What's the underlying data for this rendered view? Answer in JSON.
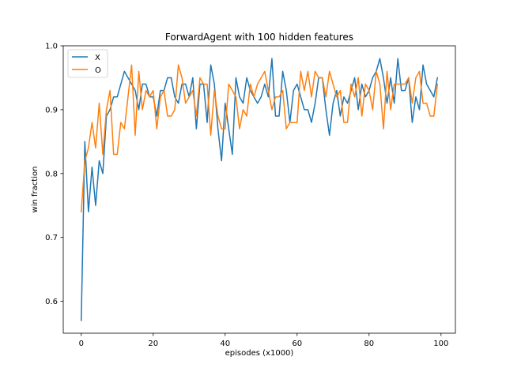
{
  "chart_data": {
    "type": "line",
    "title": "ForwardAgent with 100 hidden features",
    "xlabel": "episodes (x1000)",
    "ylabel": "win fraction",
    "xlim": [
      -5,
      104
    ],
    "ylim": [
      0.55,
      1.0
    ],
    "xticks": [
      0,
      20,
      40,
      60,
      80,
      100
    ],
    "yticks": [
      0.6,
      0.7,
      0.8,
      0.9,
      1.0
    ],
    "ytick_labels": [
      "0.6",
      "0.7",
      "0.8",
      "0.9",
      "1.0"
    ],
    "legend_position": "upper-left",
    "grid": false,
    "x": [
      0,
      1,
      2,
      3,
      4,
      5,
      6,
      7,
      8,
      9,
      10,
      11,
      12,
      13,
      14,
      15,
      16,
      17,
      18,
      19,
      20,
      21,
      22,
      23,
      24,
      25,
      26,
      27,
      28,
      29,
      30,
      31,
      32,
      33,
      34,
      35,
      36,
      37,
      38,
      39,
      40,
      41,
      42,
      43,
      44,
      45,
      46,
      47,
      48,
      49,
      50,
      51,
      52,
      53,
      54,
      55,
      56,
      57,
      58,
      59,
      60,
      61,
      62,
      63,
      64,
      65,
      66,
      67,
      68,
      69,
      70,
      71,
      72,
      73,
      74,
      75,
      76,
      77,
      78,
      79,
      80,
      81,
      82,
      83,
      84,
      85,
      86,
      87,
      88,
      89,
      90,
      91,
      92,
      93,
      94,
      95,
      96,
      97,
      98,
      99
    ],
    "series": [
      {
        "name": "X",
        "color": "#1f77b4",
        "values": [
          0.57,
          0.85,
          0.74,
          0.81,
          0.75,
          0.82,
          0.8,
          0.89,
          0.9,
          0.92,
          0.92,
          0.94,
          0.96,
          0.95,
          0.94,
          0.93,
          0.9,
          0.94,
          0.94,
          0.92,
          0.92,
          0.89,
          0.93,
          0.93,
          0.95,
          0.95,
          0.92,
          0.91,
          0.94,
          0.94,
          0.92,
          0.95,
          0.87,
          0.94,
          0.94,
          0.88,
          0.97,
          0.94,
          0.87,
          0.82,
          0.91,
          0.87,
          0.83,
          0.95,
          0.92,
          0.91,
          0.95,
          0.93,
          0.92,
          0.91,
          0.92,
          0.94,
          0.92,
          0.98,
          0.89,
          0.89,
          0.96,
          0.93,
          0.88,
          0.93,
          0.94,
          0.92,
          0.9,
          0.9,
          0.88,
          0.91,
          0.95,
          0.95,
          0.9,
          0.86,
          0.91,
          0.93,
          0.89,
          0.92,
          0.91,
          0.93,
          0.95,
          0.9,
          0.94,
          0.92,
          0.93,
          0.95,
          0.96,
          0.98,
          0.95,
          0.91,
          0.95,
          0.91,
          0.98,
          0.93,
          0.93,
          0.95,
          0.88,
          0.92,
          0.9,
          0.97,
          0.94,
          0.93,
          0.92,
          0.95
        ]
      },
      {
        "name": "O",
        "color": "#ff7f0e",
        "values": [
          0.74,
          0.82,
          0.84,
          0.88,
          0.84,
          0.91,
          0.83,
          0.9,
          0.93,
          0.83,
          0.83,
          0.88,
          0.87,
          0.92,
          0.97,
          0.86,
          0.96,
          0.9,
          0.93,
          0.92,
          0.93,
          0.87,
          0.92,
          0.93,
          0.89,
          0.89,
          0.9,
          0.97,
          0.95,
          0.91,
          0.92,
          0.93,
          0.89,
          0.95,
          0.94,
          0.94,
          0.86,
          0.93,
          0.89,
          0.87,
          0.87,
          0.94,
          0.93,
          0.92,
          0.87,
          0.9,
          0.89,
          0.94,
          0.92,
          0.94,
          0.95,
          0.96,
          0.93,
          0.9,
          0.92,
          0.92,
          0.93,
          0.87,
          0.88,
          0.88,
          0.88,
          0.96,
          0.93,
          0.96,
          0.92,
          0.96,
          0.95,
          0.95,
          0.92,
          0.96,
          0.94,
          0.92,
          0.93,
          0.88,
          0.88,
          0.94,
          0.92,
          0.95,
          0.89,
          0.94,
          0.93,
          0.9,
          0.96,
          0.94,
          0.87,
          0.96,
          0.9,
          0.94,
          0.94,
          0.94,
          0.94,
          0.95,
          0.91,
          0.95,
          0.96,
          0.91,
          0.91,
          0.89,
          0.89,
          0.94
        ]
      }
    ]
  }
}
